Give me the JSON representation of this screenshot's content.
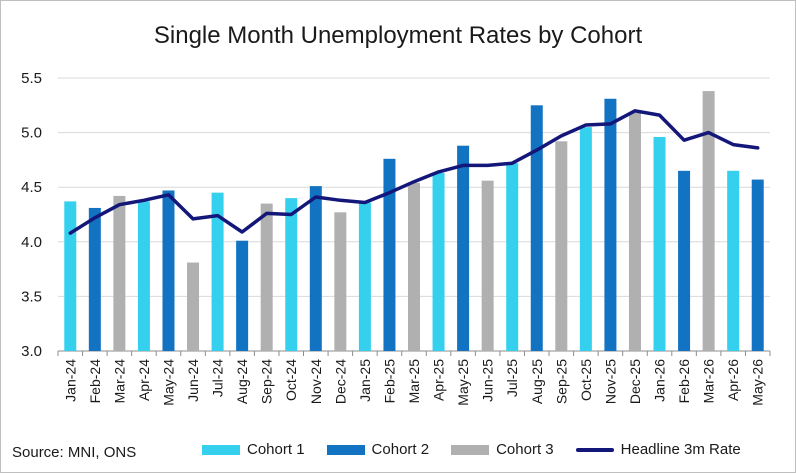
{
  "chart_data": {
    "type": "bar",
    "title": "Single Month Unemployment Rates by Cohort",
    "source": "Source: MNI, ONS",
    "ylim": [
      3.0,
      5.5
    ],
    "yticks": [
      "3.0",
      "3.5",
      "4.0",
      "4.5",
      "5.0",
      "5.5"
    ],
    "grid": true,
    "legend_position": "bottom",
    "categories": [
      "Jan-24",
      "Feb-24",
      "Mar-24",
      "Apr-24",
      "May-24",
      "Jun-24",
      "Jul-24",
      "Aug-24",
      "Sep-24",
      "Oct-24",
      "Nov-24",
      "Dec-24",
      "Jan-25",
      "Feb-25",
      "Mar-25",
      "Apr-25",
      "May-25",
      "Jun-25",
      "Jul-25",
      "Aug-25",
      "Sep-25",
      "Oct-25",
      "Nov-25",
      "Dec-25",
      "Jan-26",
      "Feb-26",
      "Mar-26",
      "Apr-26",
      "May-26"
    ],
    "cohort_pattern": [
      1,
      2,
      3,
      1,
      2,
      3,
      1,
      2,
      3,
      1,
      2,
      3,
      1,
      2,
      3,
      1,
      2,
      3,
      1,
      2,
      3,
      1,
      2,
      3,
      1,
      2,
      3,
      1,
      2
    ],
    "bar_values": [
      4.37,
      4.31,
      4.42,
      4.37,
      4.47,
      3.81,
      4.45,
      4.01,
      4.35,
      4.4,
      4.51,
      4.27,
      4.36,
      4.76,
      4.54,
      4.63,
      4.88,
      4.56,
      4.72,
      5.25,
      4.92,
      5.05,
      5.31,
      5.18,
      4.96,
      4.65,
      5.38,
      4.65,
      4.57
    ],
    "series": [
      {
        "name": "Cohort 1",
        "color": "#35d0ee",
        "type": "bar"
      },
      {
        "name": "Cohort 2",
        "color": "#1273c2",
        "type": "bar"
      },
      {
        "name": "Cohort 3",
        "color": "#b0b0b0",
        "type": "bar"
      },
      {
        "name": "Headline 3m Rate",
        "color": "#14177a",
        "type": "line",
        "values": [
          4.08,
          4.22,
          4.34,
          4.38,
          4.43,
          4.21,
          4.24,
          4.09,
          4.26,
          4.25,
          4.41,
          4.38,
          4.36,
          4.45,
          4.55,
          4.64,
          4.7,
          4.7,
          4.72,
          4.84,
          4.97,
          5.07,
          5.08,
          5.2,
          5.16,
          4.93,
          5.0,
          4.89,
          4.86
        ]
      }
    ]
  }
}
